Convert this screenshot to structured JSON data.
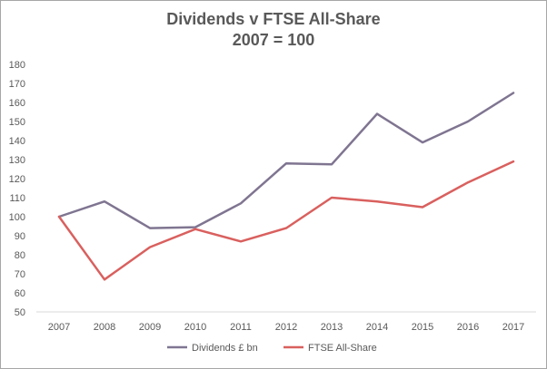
{
  "chart_data": {
    "type": "line",
    "title": "Dividends v FTSE All-Share",
    "subtitle": "2007 = 100",
    "xlabel": "",
    "ylabel": "",
    "categories": [
      "2007",
      "2008",
      "2009",
      "2010",
      "2011",
      "2012",
      "2013",
      "2014",
      "2015",
      "2016",
      "2017"
    ],
    "ylim": [
      50,
      180
    ],
    "yticks": [
      50,
      60,
      70,
      80,
      90,
      100,
      110,
      120,
      130,
      140,
      150,
      160,
      170,
      180
    ],
    "grid": false,
    "legend_position": "bottom",
    "series": [
      {
        "name": "Dividends £ bn",
        "color": "#7f7591",
        "values": [
          100,
          108,
          94,
          94.5,
          107,
          128,
          127.5,
          154,
          139,
          150,
          165
        ]
      },
      {
        "name": "FTSE All-Share",
        "color": "#d9605e",
        "values": [
          100,
          67,
          84,
          93.5,
          87,
          94,
          110,
          108,
          105,
          118,
          129
        ]
      }
    ]
  }
}
